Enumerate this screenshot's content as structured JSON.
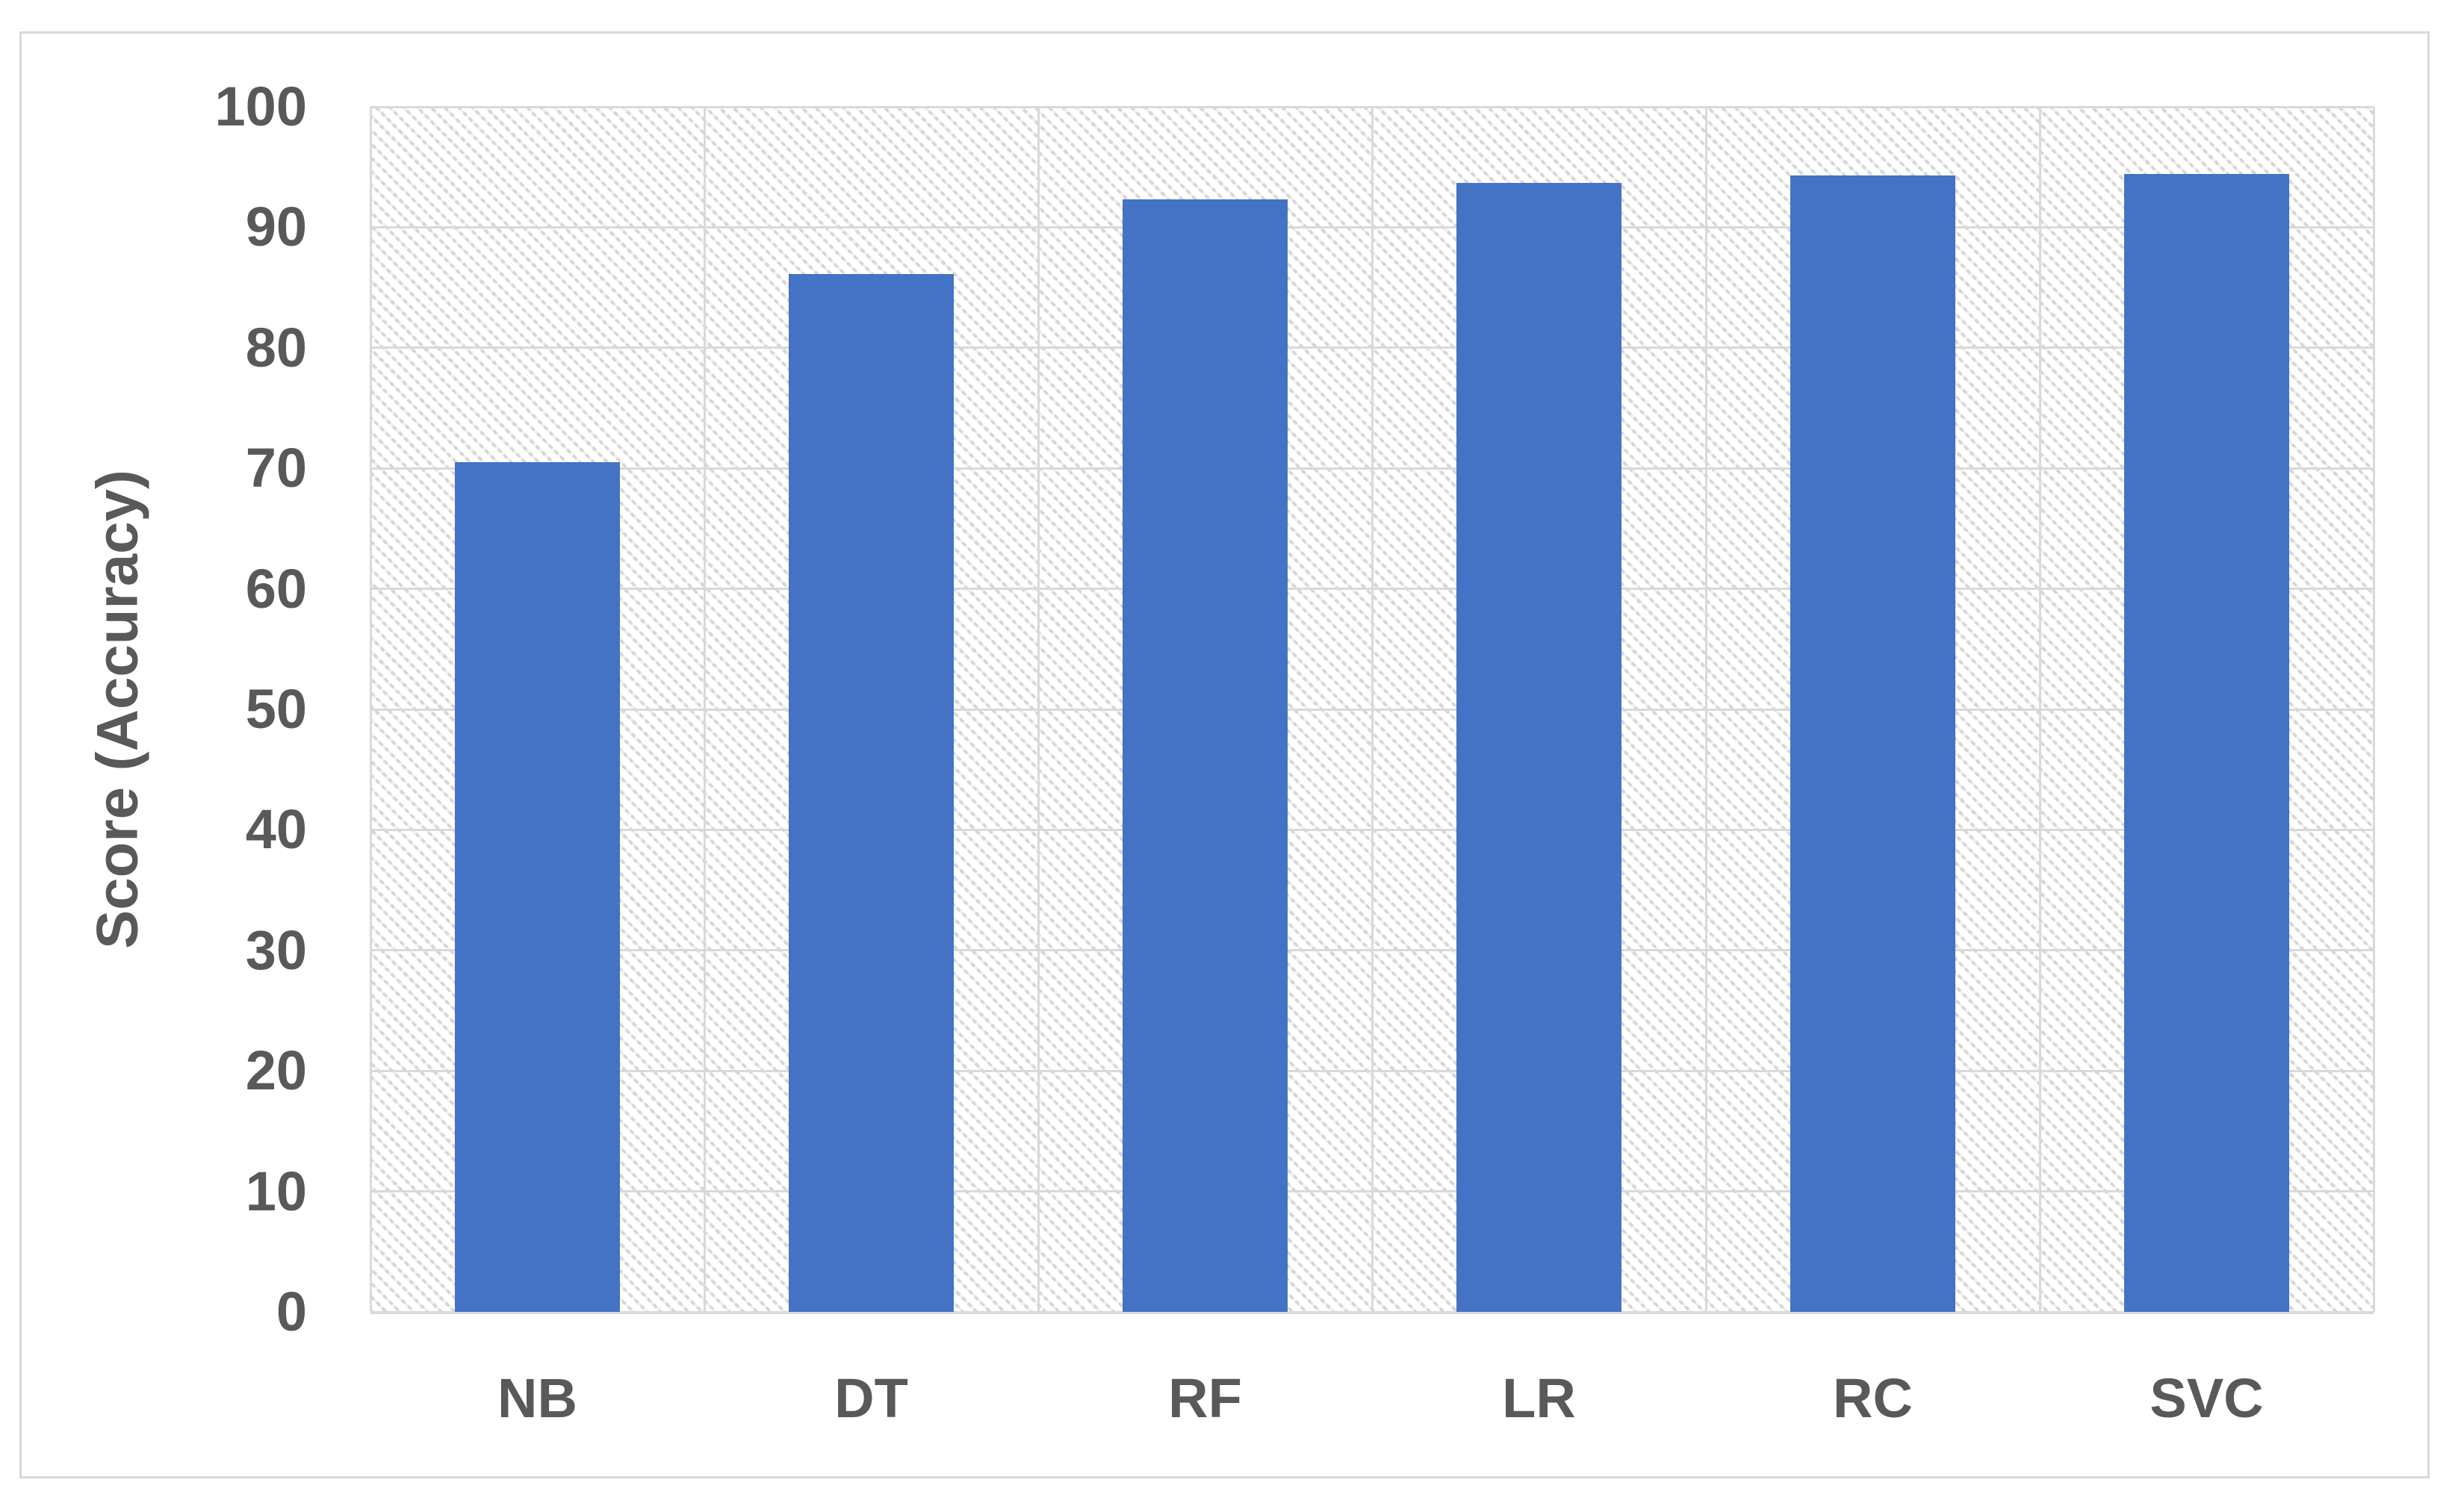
{
  "chart_data": {
    "type": "bar",
    "title": "",
    "categories": [
      "NB",
      "DT",
      "RF",
      "LR",
      "RC",
      "SVC"
    ],
    "values": [
      70.5,
      86.1,
      92.3,
      93.7,
      94.3,
      94.4
    ],
    "series_name": "Score (Accuracy)",
    "xlabel": "",
    "ylabel": "Score (Accuracy)",
    "ylim": [
      0,
      100
    ],
    "ytick_step": 10,
    "ytick_labels": [
      "0",
      "10",
      "20",
      "30",
      "40",
      "50",
      "60",
      "70",
      "80",
      "90",
      "100"
    ],
    "grid": "on",
    "legend_position": "none",
    "bar_color": "#4472C4",
    "gridline_color": "#D9D9D9",
    "frame_border_color": "#D9D9D9",
    "label_color": "#595959",
    "plot_background_pattern": "light-downward-diagonal-hatch"
  }
}
